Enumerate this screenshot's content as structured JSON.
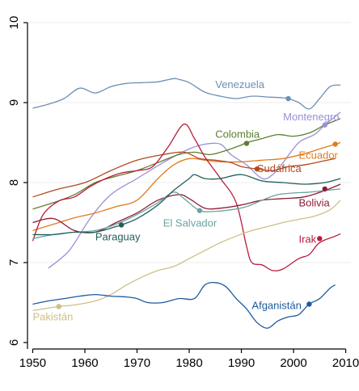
{
  "chart_data": {
    "type": "line",
    "title": "",
    "xlabel": "",
    "ylabel": "",
    "xlim": [
      1949,
      2011
    ],
    "ylim": [
      6,
      10
    ],
    "x_ticks": [
      1950,
      1960,
      1970,
      1980,
      1990,
      2000,
      2010
    ],
    "y_ticks": [
      6,
      7,
      8,
      9,
      10
    ],
    "grid": "horizontal",
    "legend": "none",
    "series": [
      {
        "name": "Venezuela",
        "color": "#6d8fb4",
        "x": [
          1950,
          1953,
          1956,
          1959,
          1962,
          1965,
          1968,
          1971,
          1974,
          1977,
          1978,
          1980,
          1983,
          1986,
          1989,
          1992,
          1995,
          1998,
          1999,
          2001,
          2003,
          2005,
          2007,
          2009
        ],
        "y": [
          8.93,
          8.98,
          9.05,
          9.18,
          9.12,
          9.2,
          9.24,
          9.25,
          9.26,
          9.3,
          9.29,
          9.25,
          9.13,
          9.08,
          9.05,
          9.08,
          9.07,
          9.06,
          9.05,
          9.0,
          8.92,
          9.05,
          9.2,
          9.22
        ],
        "marker": {
          "x": 1999,
          "y": 9.05
        },
        "label_pos": {
          "x": 1985,
          "y": 9.18
        }
      },
      {
        "name": "Montenegro",
        "color": "#9b8fd6",
        "x": [
          1953,
          1957,
          1961,
          1965,
          1970,
          1975,
          1980,
          1983,
          1986,
          1988,
          1991,
          1994,
          1996,
          1998,
          2001,
          2004,
          2006,
          2009
        ],
        "y": [
          6.93,
          7.15,
          7.55,
          7.85,
          8.05,
          8.25,
          8.42,
          8.48,
          8.48,
          8.35,
          8.22,
          8.05,
          8.1,
          8.25,
          8.5,
          8.6,
          8.72,
          8.88
        ],
        "marker": {
          "x": 2006,
          "y": 8.72
        },
        "label_pos": {
          "x": 1998,
          "y": 8.78
        }
      },
      {
        "name": "Colombia",
        "color": "#5b7f2f",
        "x": [
          1950,
          1954,
          1958,
          1962,
          1966,
          1970,
          1974,
          1978,
          1981,
          1984,
          1987,
          1990,
          1991,
          1994,
          1997,
          2000,
          2003,
          2006,
          2009
        ],
        "y": [
          7.67,
          7.75,
          7.85,
          8.0,
          8.08,
          8.15,
          8.25,
          8.35,
          8.38,
          8.35,
          8.4,
          8.47,
          8.5,
          8.55,
          8.6,
          8.58,
          8.62,
          8.72,
          8.8
        ],
        "marker": {
          "x": 1991,
          "y": 8.49
        },
        "label_pos": {
          "x": 1985,
          "y": 8.56
        }
      },
      {
        "name": "Ecuador",
        "color": "#e07b1c",
        "x": [
          1950,
          1954,
          1958,
          1962,
          1966,
          1970,
          1974,
          1977,
          1980,
          1983,
          1986,
          1990,
          1994,
          1998,
          2002,
          2005,
          2008,
          2009
        ],
        "y": [
          7.4,
          7.48,
          7.56,
          7.62,
          7.7,
          7.78,
          8.05,
          8.22,
          8.3,
          8.28,
          8.26,
          8.26,
          8.28,
          8.3,
          8.36,
          8.42,
          8.48,
          8.5
        ],
        "marker": {
          "x": 2008,
          "y": 8.48
        },
        "label_pos": {
          "x": 2001,
          "y": 8.3
        }
      },
      {
        "name": "Sudáfrica",
        "color": "#b1491f",
        "x": [
          1950,
          1955,
          1960,
          1965,
          1970,
          1975,
          1979,
          1982,
          1985,
          1988,
          1990,
          1993,
          1996,
          1999,
          2002,
          2005,
          2008
        ],
        "y": [
          7.82,
          7.92,
          8.0,
          8.15,
          8.28,
          8.35,
          8.38,
          8.3,
          8.28,
          8.25,
          8.2,
          8.17,
          8.15,
          8.2,
          8.22,
          8.26,
          8.3
        ],
        "marker": {
          "x": 1993,
          "y": 8.17
        },
        "label_pos": {
          "x": 1993,
          "y": 8.13
        }
      },
      {
        "name": "Irak",
        "color": "#b81c3c",
        "x": [
          1950,
          1952,
          1955,
          1958,
          1961,
          1964,
          1967,
          1970,
          1973,
          1976,
          1979,
          1981,
          1983,
          1986,
          1989,
          1991,
          1992,
          1994,
          1996,
          1998,
          2001,
          2003,
          2005,
          2008,
          2009
        ],
        "y": [
          7.27,
          7.6,
          7.77,
          7.82,
          7.95,
          8.05,
          8.12,
          8.15,
          8.2,
          8.45,
          8.73,
          8.55,
          8.32,
          8.05,
          7.75,
          7.2,
          7.0,
          6.97,
          6.9,
          6.92,
          7.05,
          7.1,
          7.25,
          7.33,
          7.36
        ],
        "marker": {
          "x": 2005,
          "y": 7.3
        },
        "label_pos": {
          "x": 2001,
          "y": 7.25
        }
      },
      {
        "name": "Bolivia",
        "color": "#8e1c36",
        "x": [
          1950,
          1954,
          1958,
          1962,
          1966,
          1970,
          1974,
          1978,
          1980,
          1983,
          1986,
          1990,
          1994,
          1998,
          2002,
          2006,
          2009
        ],
        "y": [
          7.5,
          7.55,
          7.4,
          7.38,
          7.5,
          7.62,
          7.78,
          7.85,
          7.8,
          7.68,
          7.68,
          7.72,
          7.78,
          7.8,
          7.82,
          7.9,
          7.98
        ],
        "marker": {
          "x": 2006,
          "y": 7.92
        },
        "label_pos": {
          "x": 2001,
          "y": 7.7
        }
      },
      {
        "name": "El Salvador",
        "color": "#6aa3a0",
        "x": [
          1950,
          1954,
          1958,
          1962,
          1966,
          1970,
          1974,
          1977,
          1979,
          1982,
          1985,
          1988,
          1991,
          1994,
          1997,
          2000,
          2003,
          2006,
          2009
        ],
        "y": [
          7.3,
          7.35,
          7.38,
          7.4,
          7.48,
          7.6,
          7.75,
          7.88,
          7.8,
          7.65,
          7.64,
          7.66,
          7.7,
          7.78,
          7.85,
          7.87,
          7.88,
          7.9,
          7.92
        ],
        "marker": {
          "x": 1982,
          "y": 7.65
        },
        "label_pos": {
          "x": 1975,
          "y": 7.45
        }
      },
      {
        "name": "Paraguay",
        "color": "#1f5f59",
        "x": [
          1950,
          1954,
          1958,
          1962,
          1966,
          1967,
          1970,
          1974,
          1977,
          1980,
          1981,
          1983,
          1986,
          1990,
          1994,
          1998,
          2002,
          2006,
          2009
        ],
        "y": [
          7.35,
          7.35,
          7.38,
          7.38,
          7.45,
          7.47,
          7.55,
          7.72,
          7.9,
          8.05,
          8.1,
          8.05,
          8.05,
          8.1,
          8.02,
          8.0,
          7.98,
          8.0,
          8.05
        ],
        "marker": {
          "x": 1967,
          "y": 7.47
        },
        "label_pos": {
          "x": 1962,
          "y": 7.28
        }
      },
      {
        "name": "Pakistán",
        "color": "#cdbf86",
        "x": [
          1950,
          1955,
          1958,
          1962,
          1965,
          1968,
          1971,
          1974,
          1977,
          1980,
          1983,
          1986,
          1989,
          1992,
          1995,
          1998,
          2001,
          2004,
          2007,
          2009
        ],
        "y": [
          6.4,
          6.45,
          6.47,
          6.52,
          6.6,
          6.72,
          6.82,
          6.9,
          6.95,
          7.05,
          7.15,
          7.25,
          7.33,
          7.4,
          7.45,
          7.5,
          7.54,
          7.58,
          7.66,
          7.78
        ],
        "marker": {
          "x": 1955,
          "y": 6.45
        },
        "label_pos": {
          "x": 1950,
          "y": 6.28
        }
      },
      {
        "name": "Afganistán",
        "color": "#1e5a9c",
        "x": [
          1950,
          1953,
          1956,
          1959,
          1962,
          1965,
          1968,
          1970,
          1972,
          1975,
          1978,
          1981,
          1983,
          1985,
          1987,
          1989,
          1991,
          1993,
          1995,
          1997,
          1999,
          2001,
          2003,
          2005,
          2007,
          2008
        ],
        "y": [
          6.48,
          6.52,
          6.55,
          6.58,
          6.6,
          6.58,
          6.57,
          6.55,
          6.5,
          6.5,
          6.55,
          6.55,
          6.72,
          6.75,
          6.7,
          6.55,
          6.42,
          6.25,
          6.18,
          6.27,
          6.32,
          6.35,
          6.48,
          6.55,
          6.68,
          6.72
        ],
        "marker": {
          "x": 2003,
          "y": 6.48
        },
        "label_pos": {
          "x": 1992,
          "y": 6.42
        }
      }
    ]
  }
}
